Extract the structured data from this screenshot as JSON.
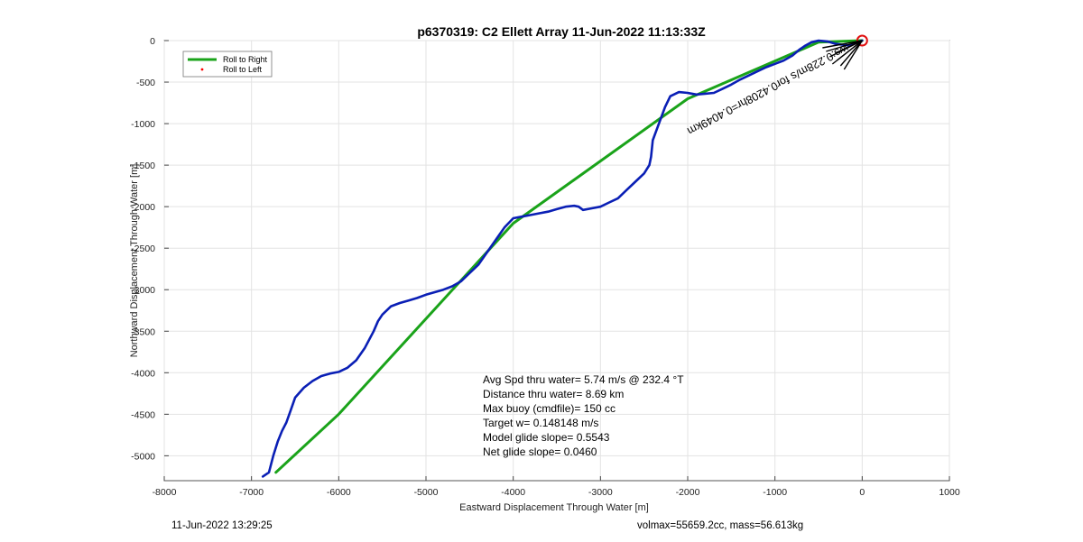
{
  "chart_data": {
    "type": "line",
    "title": "p6370319: C2 Ellett Array 11-Jun-2022 11:13:33Z",
    "xlabel": "Eastward Displacement Through Water [m]",
    "ylabel": "Northward Displacement Through Water [m]",
    "xlim": [
      -8000,
      1000
    ],
    "ylim": [
      -5300,
      0
    ],
    "xticks": [
      -8000,
      -7000,
      -6000,
      -5000,
      -4000,
      -3000,
      -2000,
      -1000,
      0,
      1000
    ],
    "yticks": [
      0,
      -500,
      -1000,
      -1500,
      -2000,
      -2500,
      -3000,
      -3500,
      -4000,
      -4500,
      -5000
    ],
    "xtick_labels": [
      "-8000",
      "-7000",
      "-6000",
      "-5000",
      "-4000",
      "-3000",
      "-2000",
      "-1000",
      "0",
      "1000"
    ],
    "ytick_labels": [
      "0",
      "-500",
      "-1000",
      "-1500",
      "-2000",
      "-2500",
      "-3000",
      "-3500",
      "-4000",
      "-4500",
      "-5000"
    ],
    "grid": true,
    "legend": {
      "placement": "top-left",
      "entries": [
        {
          "label": "Roll to Right",
          "color": "#1aa31a",
          "style": "line"
        },
        {
          "label": "Roll to Left",
          "color": "#ff0000",
          "style": "point"
        }
      ]
    },
    "series": [
      {
        "color": "#1aa31a",
        "x": [
          0,
          -500,
          -2000,
          -4000,
          -6000,
          -6720
        ],
        "y": [
          0,
          -20,
          -700,
          -2200,
          -4500,
          -5200
        ]
      },
      {
        "color": "#0a1fb5",
        "x": [
          0,
          -50,
          -150,
          -300,
          -400,
          -500,
          -580,
          -650,
          -720,
          -800,
          -900,
          -1000,
          -1100,
          -1200,
          -1300,
          -1400,
          -1500,
          -1600,
          -1700,
          -1800,
          -1900,
          -2000,
          -2100,
          -2200,
          -2260,
          -2330,
          -2400,
          -2420,
          -2440,
          -2500,
          -2600,
          -2700,
          -2800,
          -2900,
          -3000,
          -3100,
          -3200,
          -3250,
          -3300,
          -3400,
          -3500,
          -3600,
          -3700,
          -3800,
          -3900,
          -4000,
          -4100,
          -4200,
          -4300,
          -4400,
          -4500,
          -4600,
          -4700,
          -4800,
          -4900,
          -5000,
          -5100,
          -5200,
          -5300,
          -5400,
          -5450,
          -5500,
          -5550,
          -5600,
          -5700,
          -5800,
          -5900,
          -6000,
          -6100,
          -6200,
          -6300,
          -6400,
          -6500,
          -6550,
          -6600,
          -6650,
          -6700,
          -6750,
          -6800,
          -6870
        ],
        "y": [
          0,
          -20,
          -60,
          -40,
          -10,
          0,
          -20,
          -60,
          -110,
          -180,
          -240,
          -280,
          -320,
          -370,
          -420,
          -470,
          -530,
          -580,
          -630,
          -640,
          -650,
          -630,
          -620,
          -670,
          -800,
          -1000,
          -1200,
          -1400,
          -1500,
          -1600,
          -1700,
          -1800,
          -1900,
          -1950,
          -2000,
          -2020,
          -2040,
          -2000,
          -1990,
          -2000,
          -2030,
          -2060,
          -2080,
          -2100,
          -2120,
          -2140,
          -2250,
          -2400,
          -2550,
          -2700,
          -2800,
          -2900,
          -2960,
          -3000,
          -3030,
          -3060,
          -3100,
          -3130,
          -3160,
          -3200,
          -3250,
          -3300,
          -3380,
          -3500,
          -3700,
          -3850,
          -3940,
          -3990,
          -4010,
          -4040,
          -4100,
          -4180,
          -4300,
          -4450,
          -4600,
          -4700,
          -4830,
          -5000,
          -5200,
          -5250
        ]
      }
    ],
    "marker": {
      "x": 0,
      "y": 0,
      "color": "#e01010"
    },
    "rotated_annotation": "ws:0.228m/s for0.4208hr=0.4049km",
    "annotations": [
      "Avg Spd thru water=  5.74 m/s @ 232.4 °T",
      "Distance thru water=  8.69 km",
      "Max buoy (cmdfile)= 150 cc",
      "Target w= 0.148148 m/s",
      "Model glide slope= 0.5543",
      "Net glide slope= 0.0460"
    ]
  },
  "footer": {
    "left": "11-Jun-2022 13:29:25",
    "right": "volmax=55659.2cc, mass=56.613kg"
  }
}
